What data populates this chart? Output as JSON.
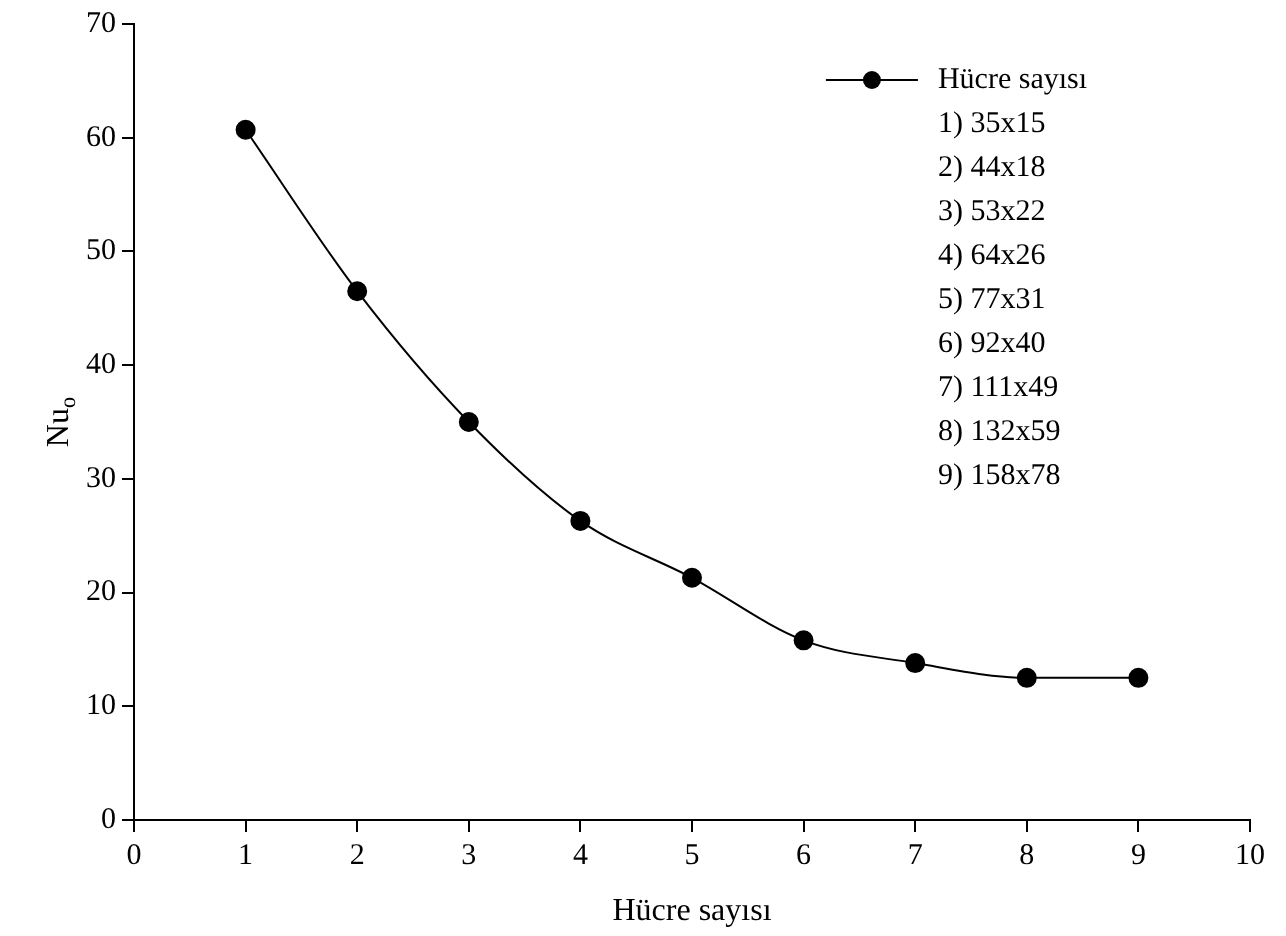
{
  "chart_data": {
    "type": "line",
    "xlabel": "Hücre sayısı",
    "ylabel": "Nu$_{o}$",
    "x": [
      1,
      2,
      3,
      4,
      5,
      6,
      7,
      8,
      9
    ],
    "series": [
      {
        "name": "Hücre sayısı",
        "color": "#000000",
        "values": [
          60.7,
          46.5,
          35,
          26.3,
          21.3,
          15.8,
          13.8,
          12.5,
          12.5
        ]
      }
    ],
    "xlim": [
      0,
      10
    ],
    "xticks": [
      0,
      1,
      2,
      3,
      4,
      5,
      6,
      7,
      8,
      9,
      10
    ],
    "ylim": [
      0,
      70
    ],
    "yticks": [
      0,
      10,
      20,
      30,
      40,
      50,
      60,
      70
    ],
    "grid": false,
    "legend": "top right",
    "marker": "circle",
    "line_style": "solid",
    "annotations": [
      "1) 35x15",
      "2) 44x18",
      "3) 53x22",
      "4) 64x26",
      "5) 77x31",
      "6) 92x40",
      "7) 111x49",
      "8) 132x59",
      "9) 158x78"
    ]
  }
}
